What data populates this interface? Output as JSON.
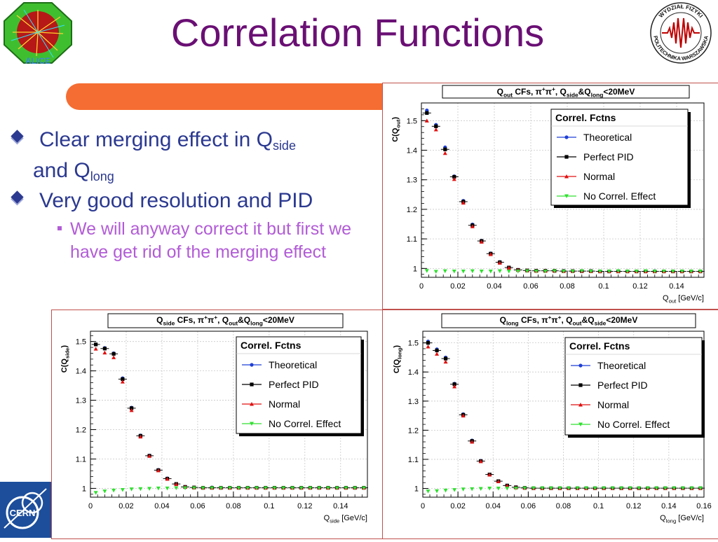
{
  "slide": {
    "title": "Correlation Functions",
    "bullets": [
      {
        "parts": [
          "Clear merging effect in Q",
          "side",
          " and Q",
          "long"
        ]
      },
      {
        "parts": [
          "Very good resolution and PID"
        ]
      }
    ],
    "sub_bullet": "We will anyway correct it but first we have get rid of the merging effect",
    "logos": {
      "left": "ALICE",
      "right_top": "WYDZIAŁ FIZYKI",
      "right_bottom": "POLITECHNIKA WARSZAWSKA",
      "bottom": "CERN"
    }
  },
  "colors": {
    "title": "#6a0f74",
    "bullet": "#2b3990",
    "sub_bullet": "#b25cd6",
    "bar": "#f56d32",
    "theoretical": "#1f3fd6",
    "perfect_pid": "#000000",
    "normal": "#e01010",
    "no_correl": "#30e030"
  },
  "chart_data": [
    {
      "id": "out",
      "type": "scatter",
      "title_parts": [
        "Q",
        "out",
        " CFs, π",
        "+",
        "π",
        "+",
        ", Q",
        "side",
        "&Q",
        "long",
        "<20MeV"
      ],
      "ylabel_parts": [
        "C(Q",
        "out",
        ")"
      ],
      "xlabel_parts": [
        "Q",
        "out",
        " [GeV/c]"
      ],
      "xlim": [
        0,
        0.155
      ],
      "ylim": [
        0.97,
        1.56
      ],
      "xticks": [
        0,
        0.02,
        0.04,
        0.06,
        0.08,
        0.1,
        0.12,
        0.14
      ],
      "xtick_labels": [
        "0",
        "0.02",
        "0.04",
        "0.06",
        "0.08",
        "0.1",
        "0.12",
        "0.14"
      ],
      "yticks": [
        1,
        1.1,
        1.2,
        1.3,
        1.4,
        1.5
      ],
      "ytick_labels": [
        "1",
        "1.1",
        "1.2",
        "1.3",
        "1.4",
        "1.5"
      ],
      "grid": true,
      "legend": {
        "title": "Correl. Fctns",
        "placement": "top-right",
        "entries": [
          "Theoretical",
          "Perfect PID",
          "Normal",
          "No Correl. Effect"
        ]
      },
      "x": [
        0.003,
        0.008,
        0.013,
        0.018,
        0.023,
        0.028,
        0.033,
        0.038,
        0.043,
        0.048,
        0.053,
        0.058,
        0.063,
        0.068,
        0.073,
        0.078,
        0.083,
        0.088,
        0.093,
        0.098,
        0.103,
        0.108,
        0.113,
        0.118,
        0.123,
        0.128,
        0.133,
        0.138,
        0.143,
        0.148,
        0.153
      ],
      "series": [
        {
          "name": "Theoretical",
          "values": [
            1.535,
            1.486,
            1.41,
            1.312,
            1.229,
            1.149,
            1.094,
            1.051,
            1.022,
            1.003,
            0.995,
            0.993,
            0.992,
            0.992,
            0.991,
            0.992,
            0.991,
            0.99,
            0.991,
            0.99,
            0.99,
            0.991,
            0.99,
            0.99,
            0.99,
            0.991,
            0.99,
            0.99,
            0.99,
            0.99,
            0.99
          ]
        },
        {
          "name": "Perfect PID",
          "values": [
            1.526,
            1.481,
            1.403,
            1.31,
            1.226,
            1.146,
            1.093,
            1.05,
            1.021,
            1.003,
            0.995,
            0.993,
            0.992,
            0.992,
            0.992,
            0.991,
            0.991,
            0.991,
            0.991,
            0.99,
            0.99,
            0.99,
            0.99,
            0.99,
            0.99,
            0.99,
            0.99,
            0.99,
            0.99,
            0.99,
            0.99
          ]
        },
        {
          "name": "Normal",
          "values": [
            1.5,
            1.47,
            1.39,
            1.302,
            1.222,
            1.142,
            1.09,
            1.048,
            1.019,
            1.002,
            0.995,
            0.993,
            0.992,
            0.992,
            0.992,
            0.991,
            0.991,
            0.991,
            0.99,
            0.99,
            0.99,
            0.99,
            0.99,
            0.99,
            0.99,
            0.99,
            0.99,
            0.99,
            0.99,
            0.99,
            0.99
          ]
        },
        {
          "name": "No Correl. Effect",
          "values": [
            0.992,
            0.989,
            0.991,
            0.99,
            0.99,
            0.991,
            0.99,
            0.99,
            0.991,
            0.99,
            0.99,
            0.991,
            0.99,
            0.99,
            0.991,
            0.99,
            0.99,
            0.991,
            0.99,
            0.99,
            0.99,
            0.991,
            0.99,
            0.99,
            0.991,
            0.99,
            0.99,
            0.99,
            0.99,
            0.99,
            0.99
          ]
        }
      ]
    },
    {
      "id": "side",
      "type": "scatter",
      "title_parts": [
        "Q",
        "side",
        " CFs, π",
        "+",
        "π",
        "+",
        ", Q",
        "out",
        "&Q",
        "long",
        "<20MeV"
      ],
      "ylabel_parts": [
        "C(Q",
        "side",
        ")"
      ],
      "xlabel_parts": [
        "Q",
        "side",
        " [GeV/c]"
      ],
      "xlim": [
        0,
        0.155
      ],
      "ylim": [
        0.97,
        1.535
      ],
      "xticks": [
        0,
        0.02,
        0.04,
        0.06,
        0.08,
        0.1,
        0.12,
        0.14
      ],
      "xtick_labels": [
        "0",
        "0.02",
        "0.04",
        "0.06",
        "0.08",
        "0.1",
        "0.12",
        "0.14"
      ],
      "yticks": [
        1,
        1.1,
        1.2,
        1.3,
        1.4,
        1.5
      ],
      "ytick_labels": [
        "1",
        "1.1",
        "1.2",
        "1.3",
        "1.4",
        "1.5"
      ],
      "grid": true,
      "legend": {
        "title": "Correl. Fctns",
        "placement": "top-right",
        "entries": [
          "Theoretical",
          "Perfect PID",
          "Normal",
          "No Correl. Effect"
        ]
      },
      "x": [
        0.003,
        0.008,
        0.013,
        0.018,
        0.023,
        0.028,
        0.033,
        0.038,
        0.043,
        0.048,
        0.053,
        0.058,
        0.063,
        0.068,
        0.073,
        0.078,
        0.083,
        0.088,
        0.093,
        0.098,
        0.103,
        0.108,
        0.113,
        0.118,
        0.123,
        0.128,
        0.133,
        0.138,
        0.143,
        0.148,
        0.153
      ],
      "series": [
        {
          "name": "Theoretical",
          "values": [
            1.49,
            1.478,
            1.46,
            1.375,
            1.275,
            1.18,
            1.112,
            1.063,
            1.034,
            1.015,
            1.005,
            1.003,
            1.002,
            1.003,
            1.002,
            1.002,
            1.002,
            1.002,
            1.002,
            1.002,
            1.002,
            1.002,
            1.002,
            1.002,
            1.002,
            1.002,
            1.002,
            1.002,
            1.002,
            1.002,
            1.002
          ]
        },
        {
          "name": "Perfect PID",
          "values": [
            1.49,
            1.476,
            1.458,
            1.372,
            1.273,
            1.179,
            1.111,
            1.062,
            1.033,
            1.015,
            1.005,
            1.003,
            1.002,
            1.002,
            1.002,
            1.002,
            1.002,
            1.002,
            1.002,
            1.002,
            1.002,
            1.002,
            1.002,
            1.002,
            1.002,
            1.002,
            1.002,
            1.002,
            1.002,
            1.002,
            1.002
          ]
        },
        {
          "name": "Normal",
          "values": [
            1.475,
            1.462,
            1.446,
            1.363,
            1.266,
            1.176,
            1.11,
            1.061,
            1.032,
            1.014,
            1.005,
            1.003,
            1.002,
            1.002,
            1.002,
            1.002,
            1.002,
            1.002,
            1.002,
            1.002,
            1.002,
            1.002,
            1.002,
            1.002,
            1.002,
            1.002,
            1.002,
            1.002,
            1.002,
            1.002,
            1.002
          ]
        },
        {
          "name": "No Correl. Effect",
          "values": [
            0.985,
            0.99,
            0.993,
            0.995,
            0.997,
            0.998,
            0.999,
            1.0,
            1.0,
            1.001,
            1.001,
            1.001,
            1.001,
            1.001,
            1.001,
            1.001,
            1.001,
            1.001,
            1.001,
            1.001,
            1.001,
            1.001,
            1.001,
            1.001,
            1.001,
            1.001,
            1.001,
            1.001,
            1.001,
            1.001,
            1.001
          ]
        }
      ]
    },
    {
      "id": "long",
      "type": "scatter",
      "title_parts": [
        "Q",
        "long",
        " CFs, π",
        "+",
        "π",
        "+",
        ", Q",
        "out",
        "&Q",
        "side",
        "<20MeV"
      ],
      "ylabel_parts": [
        "C(Q",
        "long",
        ")"
      ],
      "xlabel_parts": [
        "Q",
        "long",
        " [GeV/c]"
      ],
      "xlim": [
        0,
        0.16
      ],
      "ylim": [
        0.97,
        1.54
      ],
      "xticks": [
        0,
        0.02,
        0.04,
        0.06,
        0.08,
        0.1,
        0.12,
        0.14,
        0.16
      ],
      "xtick_labels": [
        "0",
        "0.02",
        "0.04",
        "0.06",
        "0.08",
        "0.1",
        "0.12",
        "0.14",
        "0.16"
      ],
      "yticks": [
        1,
        1.1,
        1.2,
        1.3,
        1.4,
        1.5
      ],
      "ytick_labels": [
        "1",
        "1.1",
        "1.2",
        "1.3",
        "1.4",
        "1.5"
      ],
      "grid": true,
      "legend": {
        "title": "Correl. Fctns",
        "placement": "top-right",
        "entries": [
          "Theoretical",
          "Perfect PID",
          "Normal",
          "No Correl. Effect"
        ]
      },
      "x": [
        0.003,
        0.008,
        0.013,
        0.018,
        0.023,
        0.028,
        0.033,
        0.038,
        0.043,
        0.048,
        0.053,
        0.058,
        0.063,
        0.068,
        0.073,
        0.078,
        0.083,
        0.088,
        0.093,
        0.098,
        0.103,
        0.108,
        0.113,
        0.118,
        0.123,
        0.128,
        0.133,
        0.138,
        0.143,
        0.148,
        0.153,
        0.158
      ],
      "series": [
        {
          "name": "Theoretical",
          "values": [
            1.505,
            1.478,
            1.45,
            1.36,
            1.255,
            1.165,
            1.095,
            1.048,
            1.025,
            1.01,
            1.004,
            1.002,
            1.001,
            1.001,
            1.001,
            1.001,
            1.001,
            1.001,
            1.001,
            1.001,
            1.001,
            1.001,
            1.001,
            1.001,
            1.001,
            1.001,
            1.001,
            1.001,
            1.001,
            1.001,
            1.001,
            1.001
          ]
        },
        {
          "name": "Perfect PID",
          "values": [
            1.5,
            1.474,
            1.446,
            1.358,
            1.253,
            1.163,
            1.094,
            1.048,
            1.025,
            1.01,
            1.004,
            1.002,
            1.001,
            1.001,
            1.001,
            1.001,
            1.001,
            1.001,
            1.001,
            1.001,
            1.001,
            1.001,
            1.001,
            1.001,
            1.001,
            1.001,
            1.001,
            1.001,
            1.001,
            1.001,
            1.001,
            1.001
          ]
        },
        {
          "name": "Normal",
          "values": [
            1.487,
            1.462,
            1.435,
            1.35,
            1.25,
            1.16,
            1.093,
            1.047,
            1.024,
            1.009,
            1.003,
            1.002,
            1.001,
            1.001,
            1.001,
            1.001,
            1.001,
            1.001,
            1.001,
            1.001,
            1.001,
            1.001,
            1.001,
            1.001,
            1.001,
            1.001,
            1.001,
            1.001,
            1.001,
            1.001,
            1.001,
            1.001
          ]
        },
        {
          "name": "No Correl. Effect",
          "values": [
            0.99,
            0.991,
            0.993,
            0.995,
            0.997,
            0.998,
            0.999,
            1.0,
            1.0,
            1.0,
            1.0,
            1.001,
            1.001,
            1.001,
            1.001,
            1.001,
            1.001,
            1.001,
            1.001,
            1.001,
            1.001,
            1.001,
            1.001,
            1.001,
            1.001,
            1.001,
            1.001,
            1.001,
            1.001,
            1.001,
            1.001,
            1.001
          ]
        }
      ]
    }
  ]
}
